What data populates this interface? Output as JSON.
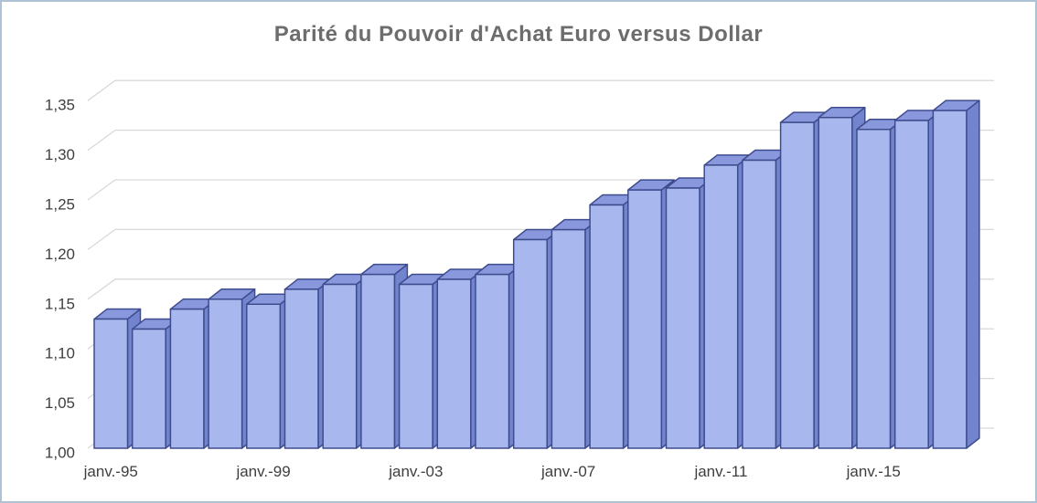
{
  "chart_data": {
    "type": "bar",
    "variant": "3d-column",
    "title": "Parité  du Pouvoir d'Achat Euro versus Dollar",
    "categories": [
      "1995",
      "1996",
      "1997",
      "1998",
      "1999",
      "2000",
      "2001",
      "2002",
      "2003",
      "2004",
      "2005",
      "2006",
      "2007",
      "2008",
      "2009",
      "2010",
      "2011",
      "2012",
      "2013",
      "2014",
      "2015",
      "2016",
      "2017"
    ],
    "values": [
      1.13,
      1.12,
      1.14,
      1.15,
      1.145,
      1.16,
      1.165,
      1.175,
      1.165,
      1.17,
      1.175,
      1.21,
      1.22,
      1.245,
      1.26,
      1.262,
      1.285,
      1.29,
      1.328,
      1.333,
      1.321,
      1.33,
      1.34
    ],
    "ylim": [
      1.0,
      1.35
    ],
    "y_tick_step": 0.05,
    "y_tick_labels": [
      {
        "label": "1,00",
        "value": 1.0
      },
      {
        "label": "1,05",
        "value": 1.05
      },
      {
        "label": "1,10",
        "value": 1.1
      },
      {
        "label": "1,15",
        "value": 1.15
      },
      {
        "label": "1,20",
        "value": 1.2
      },
      {
        "label": "1,25",
        "value": 1.25
      },
      {
        "label": "1,30",
        "value": 1.3
      },
      {
        "label": "1,35",
        "value": 1.35
      }
    ],
    "x_tick_labels": [
      {
        "label": "janv.-95",
        "category_index": 0
      },
      {
        "label": "janv.-99",
        "category_index": 4
      },
      {
        "label": "janv.-03",
        "category_index": 8
      },
      {
        "label": "janv.-07",
        "category_index": 12
      },
      {
        "label": "janv.-11",
        "category_index": 16
      },
      {
        "label": "janv.-15",
        "category_index": 20
      }
    ],
    "grid": true,
    "legend": "none",
    "decimal_separator": ",",
    "colors": {
      "bar_front": "#a9b7ef",
      "bar_top": "#8997dc",
      "bar_side": "#7384cf",
      "bar_outline": "#3e4c8e",
      "gridline": "#d9d9d9",
      "title_color": "#6d6d6d",
      "axis_label_color": "#3f3f3f",
      "frame_border": "#aec2d6",
      "background": "#ffffff"
    }
  }
}
